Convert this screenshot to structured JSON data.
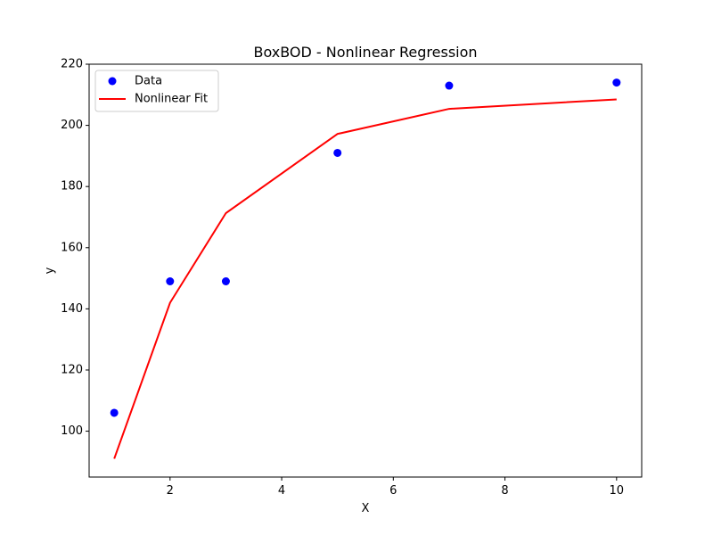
{
  "chart_data": {
    "type": "scatter",
    "title": "BoxBOD - Nonlinear Regression",
    "xlabel": "X",
    "ylabel": "y",
    "xlim": [
      0.55,
      10.45
    ],
    "ylim": [
      85,
      220
    ],
    "xticks": [
      2,
      4,
      6,
      8,
      10
    ],
    "yticks": [
      100,
      120,
      140,
      160,
      180,
      200,
      220
    ],
    "grid": false,
    "legend_position": "top-left",
    "series": [
      {
        "name": "Data",
        "kind": "scatter",
        "color": "#0000ff",
        "x": [
          1,
          2,
          3,
          5,
          7,
          10
        ],
        "y": [
          106,
          149,
          149,
          191,
          213,
          214
        ]
      },
      {
        "name": "Nonlinear Fit",
        "kind": "line",
        "color": "#ff0000",
        "x": [
          1,
          2,
          3,
          5,
          7,
          10
        ],
        "y": [
          91,
          142,
          171.3,
          197.2,
          205.4,
          208.5
        ]
      }
    ]
  }
}
